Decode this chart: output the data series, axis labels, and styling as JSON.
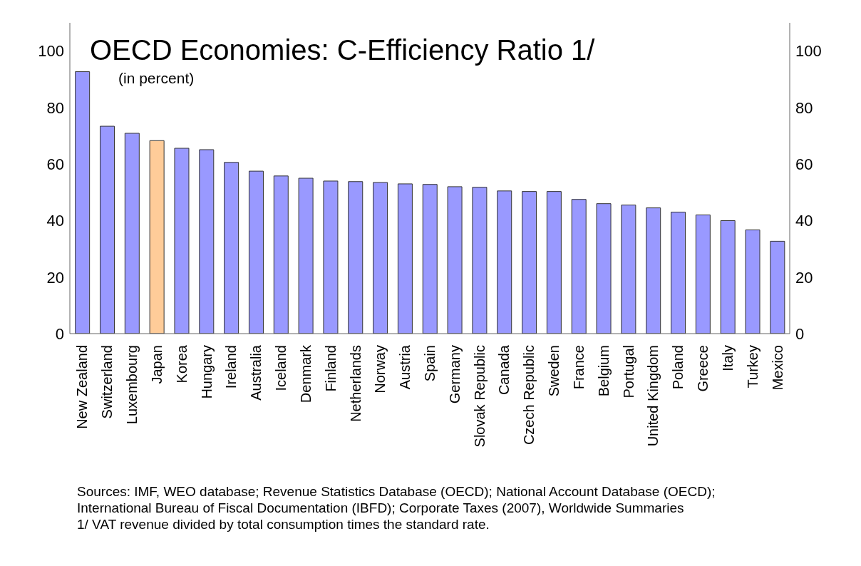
{
  "chart_data": {
    "type": "bar",
    "title": "OECD Economies: C-Efficiency Ratio 1/",
    "subtitle": "(in percent)",
    "categories": [
      "New Zealand",
      "Switzerland",
      "Luxembourg",
      "Japan",
      "Korea",
      "Hungary",
      "Ireland",
      "Australia",
      "Iceland",
      "Denmark",
      "Finland",
      "Netherlands",
      "Norway",
      "Austria",
      "Spain",
      "Germany",
      "Slovak Republic",
      "Canada",
      "Czech Republic",
      "Sweden",
      "France",
      "Belgium",
      "Portugal",
      "United Kingdom",
      "Poland",
      "Greece",
      "Italy",
      "Turkey",
      "Mexico"
    ],
    "values": [
      92.7,
      73.4,
      70.9,
      68.3,
      65.6,
      65.1,
      60.6,
      57.5,
      55.8,
      55.0,
      54.0,
      53.8,
      53.5,
      53.0,
      52.8,
      52.0,
      51.8,
      50.5,
      50.3,
      50.3,
      47.5,
      46.0,
      45.5,
      44.5,
      43.0,
      42.0,
      40.0,
      36.7,
      32.7
    ],
    "colors": [
      "#9999ff",
      "#9999ff",
      "#9999ff",
      "#ffcc99",
      "#9999ff",
      "#9999ff",
      "#9999ff",
      "#9999ff",
      "#9999ff",
      "#9999ff",
      "#9999ff",
      "#9999ff",
      "#9999ff",
      "#9999ff",
      "#9999ff",
      "#9999ff",
      "#9999ff",
      "#9999ff",
      "#9999ff",
      "#9999ff",
      "#9999ff",
      "#9999ff",
      "#9999ff",
      "#9999ff",
      "#9999ff",
      "#9999ff",
      "#9999ff",
      "#9999ff",
      "#9999ff"
    ],
    "ylim": [
      0,
      110
    ],
    "yticks": [
      0,
      20,
      40,
      60,
      80,
      100
    ],
    "y2lim": [
      0,
      110
    ],
    "y2ticks": [
      0,
      20,
      40,
      60,
      80,
      100
    ],
    "grid": false,
    "legend": false,
    "annotations": [
      "Sources: IMF, WEO database; Revenue Statistics Database (OECD); National Account Database (OECD); International Bureau of Fiscal Documentation  (IBFD); Corporate Taxes (2007), Worldwide Summaries",
      "1/ VAT revenue divided by total consumption times the standard rate."
    ]
  }
}
